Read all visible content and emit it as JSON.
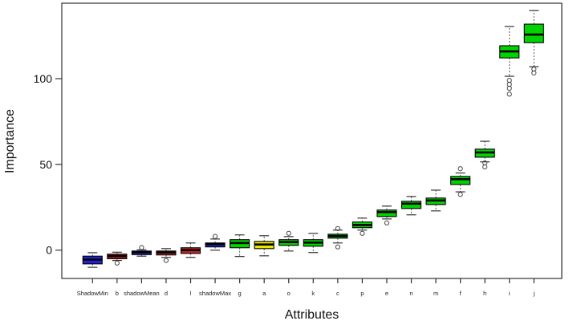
{
  "chart_data": {
    "type": "boxplot",
    "title": "",
    "xlabel": "Attributes",
    "ylabel": "Importance",
    "ylim": [
      -16.5,
      144
    ],
    "yticks": [
      0,
      50,
      100
    ],
    "grid": false,
    "legend": "none",
    "colors": {
      "blue": "#2323cd",
      "red": "#cd2222",
      "green": "#00d400",
      "yellow": "#e8e800",
      "box_border": "#000000",
      "median": "#000000",
      "whisker": "#555555",
      "outlier": "#444444",
      "axis": "#333333"
    },
    "boxes": [
      {
        "label": "ShadowMin",
        "color": "blue",
        "whislo": -10.0,
        "q1": -8.0,
        "med": -5.5,
        "q3": -3.5,
        "whishi": -1.5,
        "outliers": []
      },
      {
        "label": "b",
        "color": "red",
        "whislo": -6.0,
        "q1": -5.0,
        "med": -3.5,
        "q3": -2.3,
        "whishi": -1.2,
        "outliers": [
          -7.5
        ]
      },
      {
        "label": "shadowMean",
        "color": "blue",
        "whislo": -3.5,
        "q1": -2.6,
        "med": -1.2,
        "q3": -0.5,
        "whishi": 0.2,
        "outliers": [
          1.5
        ]
      },
      {
        "label": "d",
        "color": "red",
        "whislo": -4.2,
        "q1": -2.8,
        "med": -1.4,
        "q3": -0.5,
        "whishi": 0.9,
        "outliers": [
          -6.0
        ]
      },
      {
        "label": "l",
        "color": "red",
        "whislo": -4.2,
        "q1": -1.9,
        "med": 0.0,
        "q3": 1.4,
        "whishi": 4.2,
        "outliers": []
      },
      {
        "label": "shadowMax",
        "color": "blue",
        "whislo": 0.0,
        "q1": 1.9,
        "med": 3.5,
        "q3": 4.2,
        "whishi": 6.5,
        "outliers": [
          8.0
        ]
      },
      {
        "label": "g",
        "color": "green",
        "whislo": -3.7,
        "q1": 1.4,
        "med": 4.2,
        "q3": 6.1,
        "whishi": 8.9,
        "outliers": []
      },
      {
        "label": "a",
        "color": "yellow",
        "whislo": -3.3,
        "q1": 0.9,
        "med": 3.3,
        "q3": 5.1,
        "whishi": 8.4,
        "outliers": []
      },
      {
        "label": "o",
        "color": "green",
        "whislo": -0.5,
        "q1": 2.8,
        "med": 4.7,
        "q3": 6.1,
        "whishi": 7.9,
        "outliers": [
          9.8
        ]
      },
      {
        "label": "k",
        "color": "green",
        "whislo": -1.4,
        "q1": 2.3,
        "med": 4.4,
        "q3": 6.1,
        "whishi": 9.8,
        "outliers": []
      },
      {
        "label": "c",
        "color": "green",
        "whislo": 4.2,
        "q1": 7.0,
        "med": 8.2,
        "q3": 9.3,
        "whishi": 11.7,
        "outliers": [
          12.6,
          1.9
        ]
      },
      {
        "label": "p",
        "color": "green",
        "whislo": 11.7,
        "q1": 13.1,
        "med": 14.7,
        "q3": 16.4,
        "whishi": 18.7,
        "outliers": [
          9.8
        ]
      },
      {
        "label": "e",
        "color": "green",
        "whislo": 18.2,
        "q1": 19.6,
        "med": 22.2,
        "q3": 23.4,
        "whishi": 25.7,
        "outliers": [
          15.9
        ]
      },
      {
        "label": "n",
        "color": "green",
        "whislo": 20.6,
        "q1": 24.3,
        "med": 27.1,
        "q3": 28.5,
        "whishi": 31.3,
        "outliers": []
      },
      {
        "label": "m",
        "color": "green",
        "whislo": 22.9,
        "q1": 26.6,
        "med": 29.0,
        "q3": 30.4,
        "whishi": 35.0,
        "outliers": []
      },
      {
        "label": "f",
        "color": "green",
        "whislo": 34.0,
        "q1": 38.3,
        "med": 41.4,
        "q3": 43.0,
        "whishi": 45.0,
        "outliers": [
          47.5,
          32.5
        ]
      },
      {
        "label": "h",
        "color": "green",
        "whislo": 51.5,
        "q1": 54.2,
        "med": 57.0,
        "q3": 58.9,
        "whishi": 63.5,
        "outliers": [
          50.9,
          48.6
        ]
      },
      {
        "label": "i",
        "color": "green",
        "whislo": 101.4,
        "q1": 112.1,
        "med": 115.9,
        "q3": 119.2,
        "whishi": 130.4,
        "outliers": [
          99.0,
          96.7,
          94.4,
          91.0
        ]
      },
      {
        "label": "j",
        "color": "green",
        "whislo": 107.0,
        "q1": 121.0,
        "med": 125.7,
        "q3": 131.8,
        "whishi": 139.7,
        "outliers": [
          105.6,
          103.3
        ]
      }
    ]
  }
}
